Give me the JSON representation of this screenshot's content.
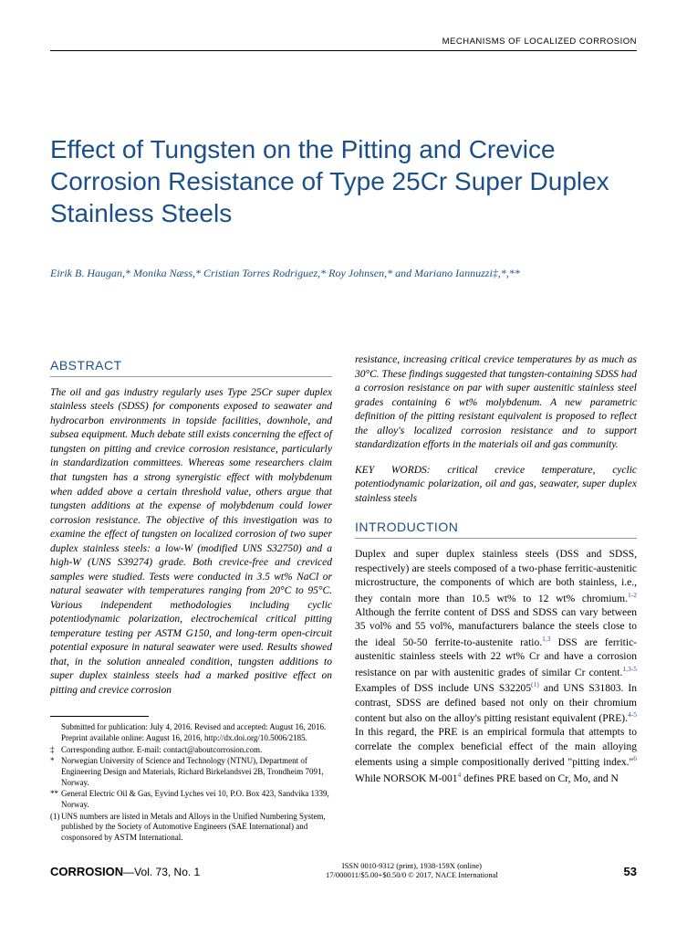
{
  "header": {
    "section_label": "MECHANISMS OF LOCALIZED CORROSION"
  },
  "title": "Effect of Tungsten on the Pitting and Crevice Corrosion Resistance of Type 25Cr Super Duplex Stainless Steels",
  "authors_html": "Eirik B. Haugan,* Monika Næss,* Cristian Torres Rodriguez,* Roy Johnsen,* and Mariano Iannuzzi‡,*,**",
  "abstract": {
    "heading": "ABSTRACT",
    "text": "The oil and gas industry regularly uses Type 25Cr super duplex stainless steels (SDSS) for components exposed to seawater and hydrocarbon environments in topside facilities, downhole, and subsea equipment. Much debate still exists concerning the effect of tungsten on pitting and crevice corrosion resistance, particularly in standardization committees. Whereas some researchers claim that tungsten has a strong synergistic effect with molybdenum when added above a certain threshold value, others argue that tungsten additions at the expense of molybdenum could lower corrosion resistance. The objective of this investigation was to examine the effect of tungsten on localized corrosion of two super duplex stainless steels: a low-W (modified UNS S32750) and a high-W (UNS S39274) grade. Both crevice-free and creviced samples were studied. Tests were conducted in 3.5 wt% NaCl or natural seawater with temperatures ranging from 20°C to 95°C. Various independent methodologies including cyclic potentiodynamic polarization, electrochemical critical pitting temperature testing per ASTM G150, and long-term open-circuit potential exposure in natural seawater were used. Results showed that, in the solution annealed condition, tungsten additions to super duplex stainless steels had a marked positive effect on pitting and crevice corrosion"
  },
  "right_col_continuation": "resistance, increasing critical crevice temperatures by as much as 30°C. These findings suggested that tungsten-containing SDSS had a corrosion resistance on par with super austenitic stainless steel grades containing 6 wt% molybdenum. A new parametric definition of the pitting resistant equivalent is proposed to reflect the alloy's localized corrosion resistance and to support standardization efforts in the materials oil and gas community.",
  "keywords": "KEY WORDS: critical crevice temperature, cyclic potentiodynamic polarization, oil and gas, seawater, super duplex stainless steels",
  "introduction": {
    "heading": "INTRODUCTION",
    "text_html": "Duplex and super duplex stainless steels (DSS and SDSS, respectively) are steels composed of a two-phase ferritic-austenitic microstructure, the components of which are both stainless, i.e., they contain more than 10.5 wt% to 12 wt% chromium.<sup>1-2</sup> Although the ferrite content of DSS and SDSS can vary between 35 vol% and 55 vol%, manufacturers balance the steels close to the ideal 50-50 ferrite-to-austenite ratio.<sup>1,3</sup> DSS are ferritic-austenitic stainless steels with 22 wt% Cr and have a corrosion resistance on par with austenitic grades of similar Cr content.<sup>1,3-5</sup> Examples of DSS include UNS S32205<sup>(1)</sup> and UNS S31803. In contrast, SDSS are defined based not only on their chromium content but also on the alloy's pitting resistant equivalent (PRE).<sup>4-5</sup> In this regard, the PRE is an empirical formula that attempts to correlate the complex beneficial effect of the main alloying elements using a simple compositionally derived \"pitting index.\"<sup>6</sup> While NORSOK M-001<sup>4</sup> defines PRE based on Cr, Mo, and N"
  },
  "footnotes": {
    "items": [
      {
        "mark": "",
        "text": "Submitted for publication: July 4, 2016. Revised and accepted: August 16, 2016. Preprint available online: August 16, 2016, http://dx.doi.org/10.5006/2185."
      },
      {
        "mark": "‡",
        "text": "Corresponding author. E-mail: contact@aboutcorrosion.com."
      },
      {
        "mark": "*",
        "text": "Norwegian University of Science and Technology (NTNU), Department of Engineering Design and Materials, Richard Birkelandsvei 2B, Trondheim 7091, Norway."
      },
      {
        "mark": "**",
        "text": "General Electric Oil & Gas, Eyvind Lyches vei 10, P.O. Box 423, Sandvika 1339, Norway."
      },
      {
        "mark": "(1)",
        "text": "UNS numbers are listed in Metals and Alloys in the Unified Numbering System, published by the Society of Automotive Engineers (SAE International) and cosponsored by ASTM International."
      }
    ]
  },
  "footer": {
    "journal": "CORROSION",
    "issue": "—Vol. 73, No. 1",
    "issn_line1": "ISSN 0010-9312 (print), 1938-159X (online)",
    "issn_line2": "17/000011/$5.00+$0.50/0 © 2017, NACE International",
    "page": "53"
  },
  "colors": {
    "heading_blue": "#1b4f8a",
    "text": "#000000",
    "rule": "#000000"
  }
}
